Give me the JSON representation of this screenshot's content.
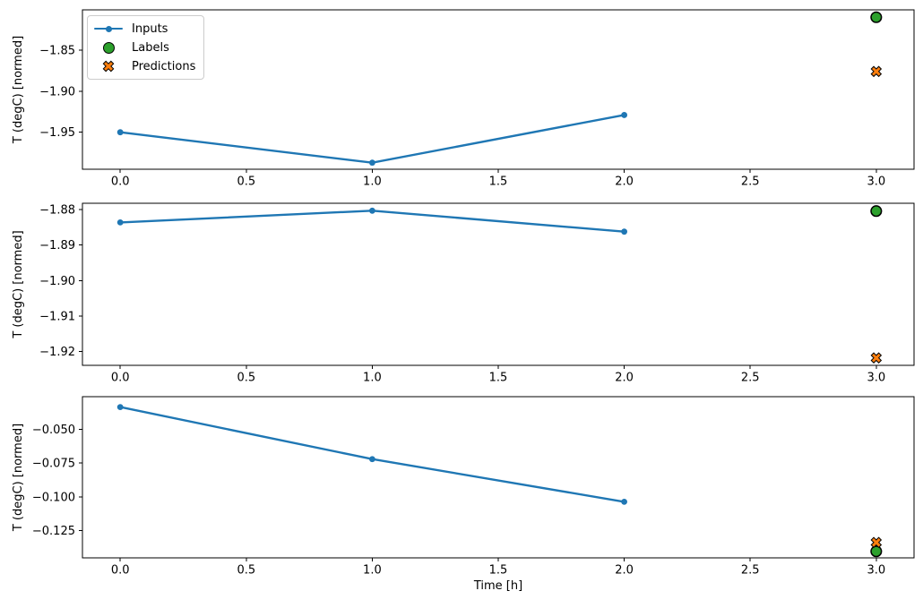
{
  "legend": {
    "items": [
      {
        "name": "inputs",
        "label": "Inputs",
        "marker": "line-with-dot-icon",
        "color": "#1f77b4"
      },
      {
        "name": "labels",
        "label": "Labels",
        "marker": "filled-circle-icon",
        "color": "#2ca02c"
      },
      {
        "name": "predictions",
        "label": "Predictions",
        "marker": "filled-x-icon",
        "color": "#ff7f0e"
      }
    ],
    "position": "upper left"
  },
  "colors": {
    "inputs": "#1f77b4",
    "labels": "#2ca02c",
    "predictions": "#ff7f0e",
    "spine": "#000000",
    "background": "#ffffff",
    "legend_border": "#cccccc"
  },
  "chart_data": [
    {
      "type": "line",
      "title": "",
      "xlabel": "",
      "ylabel": "T (degC) [normed]",
      "series": [
        {
          "name": "Inputs",
          "kind": "line",
          "marker": "dot",
          "color": "#1f77b4",
          "x": [
            0,
            1,
            2
          ],
          "y": [
            -1.95,
            -1.987,
            -1.929
          ]
        },
        {
          "name": "Labels",
          "kind": "scatter",
          "marker": "circle",
          "color": "#2ca02c",
          "x": [
            3
          ],
          "y": [
            -1.81
          ]
        },
        {
          "name": "Predictions",
          "kind": "scatter",
          "marker": "X",
          "color": "#ff7f0e",
          "x": [
            3
          ],
          "y": [
            -1.876
          ]
        }
      ],
      "xlim": [
        -0.15,
        3.15
      ],
      "ylim": [
        -1.995,
        -1.801
      ],
      "xticks": [
        0.0,
        0.5,
        1.0,
        1.5,
        2.0,
        2.5,
        3.0
      ],
      "xtick_labels": [
        "0.0",
        "0.5",
        "1.0",
        "1.5",
        "2.0",
        "2.5",
        "3.0"
      ],
      "yticks": [
        -1.85,
        -1.9,
        -1.95
      ],
      "ytick_labels": [
        "−1.85",
        "−1.90",
        "−1.95"
      ],
      "grid": false
    },
    {
      "type": "line",
      "title": "",
      "xlabel": "",
      "ylabel": "T (degC) [normed]",
      "series": [
        {
          "name": "Inputs",
          "kind": "line",
          "marker": "dot",
          "color": "#1f77b4",
          "x": [
            0,
            1,
            2
          ],
          "y": [
            -1.8836,
            -1.8803,
            -1.8862
          ]
        },
        {
          "name": "Labels",
          "kind": "scatter",
          "marker": "circle",
          "color": "#2ca02c",
          "x": [
            3
          ],
          "y": [
            -1.8804
          ]
        },
        {
          "name": "Predictions",
          "kind": "scatter",
          "marker": "X",
          "color": "#ff7f0e",
          "x": [
            3
          ],
          "y": [
            -1.9218
          ]
        }
      ],
      "xlim": [
        -0.15,
        3.15
      ],
      "ylim": [
        -1.9239,
        -1.8782
      ],
      "xticks": [
        0.0,
        0.5,
        1.0,
        1.5,
        2.0,
        2.5,
        3.0
      ],
      "xtick_labels": [
        "0.0",
        "0.5",
        "1.0",
        "1.5",
        "2.0",
        "2.5",
        "3.0"
      ],
      "yticks": [
        -1.88,
        -1.89,
        -1.9,
        -1.91,
        -1.92
      ],
      "ytick_labels": [
        "−1.88",
        "−1.89",
        "−1.90",
        "−1.91",
        "−1.92"
      ],
      "grid": false
    },
    {
      "type": "line",
      "title": "",
      "xlabel": "Time [h]",
      "ylabel": "T (degC) [normed]",
      "series": [
        {
          "name": "Inputs",
          "kind": "line",
          "marker": "dot",
          "color": "#1f77b4",
          "x": [
            0,
            1,
            2
          ],
          "y": [
            -0.0337,
            -0.0721,
            -0.1036
          ]
        },
        {
          "name": "Labels",
          "kind": "scatter",
          "marker": "circle",
          "color": "#2ca02c",
          "x": [
            3
          ],
          "y": [
            -0.1402
          ]
        },
        {
          "name": "Predictions",
          "kind": "scatter",
          "marker": "X",
          "color": "#ff7f0e",
          "x": [
            3
          ],
          "y": [
            -0.1336
          ]
        }
      ],
      "xlim": [
        -0.15,
        3.15
      ],
      "ylim": [
        -0.145,
        -0.026
      ],
      "xticks": [
        0.0,
        0.5,
        1.0,
        1.5,
        2.0,
        2.5,
        3.0
      ],
      "xtick_labels": [
        "0.0",
        "0.5",
        "1.0",
        "1.5",
        "2.0",
        "2.5",
        "3.0"
      ],
      "yticks": [
        -0.05,
        -0.075,
        -0.1,
        -0.125
      ],
      "ytick_labels": [
        "−0.050",
        "−0.075",
        "−0.100",
        "−0.125"
      ],
      "grid": false
    }
  ]
}
